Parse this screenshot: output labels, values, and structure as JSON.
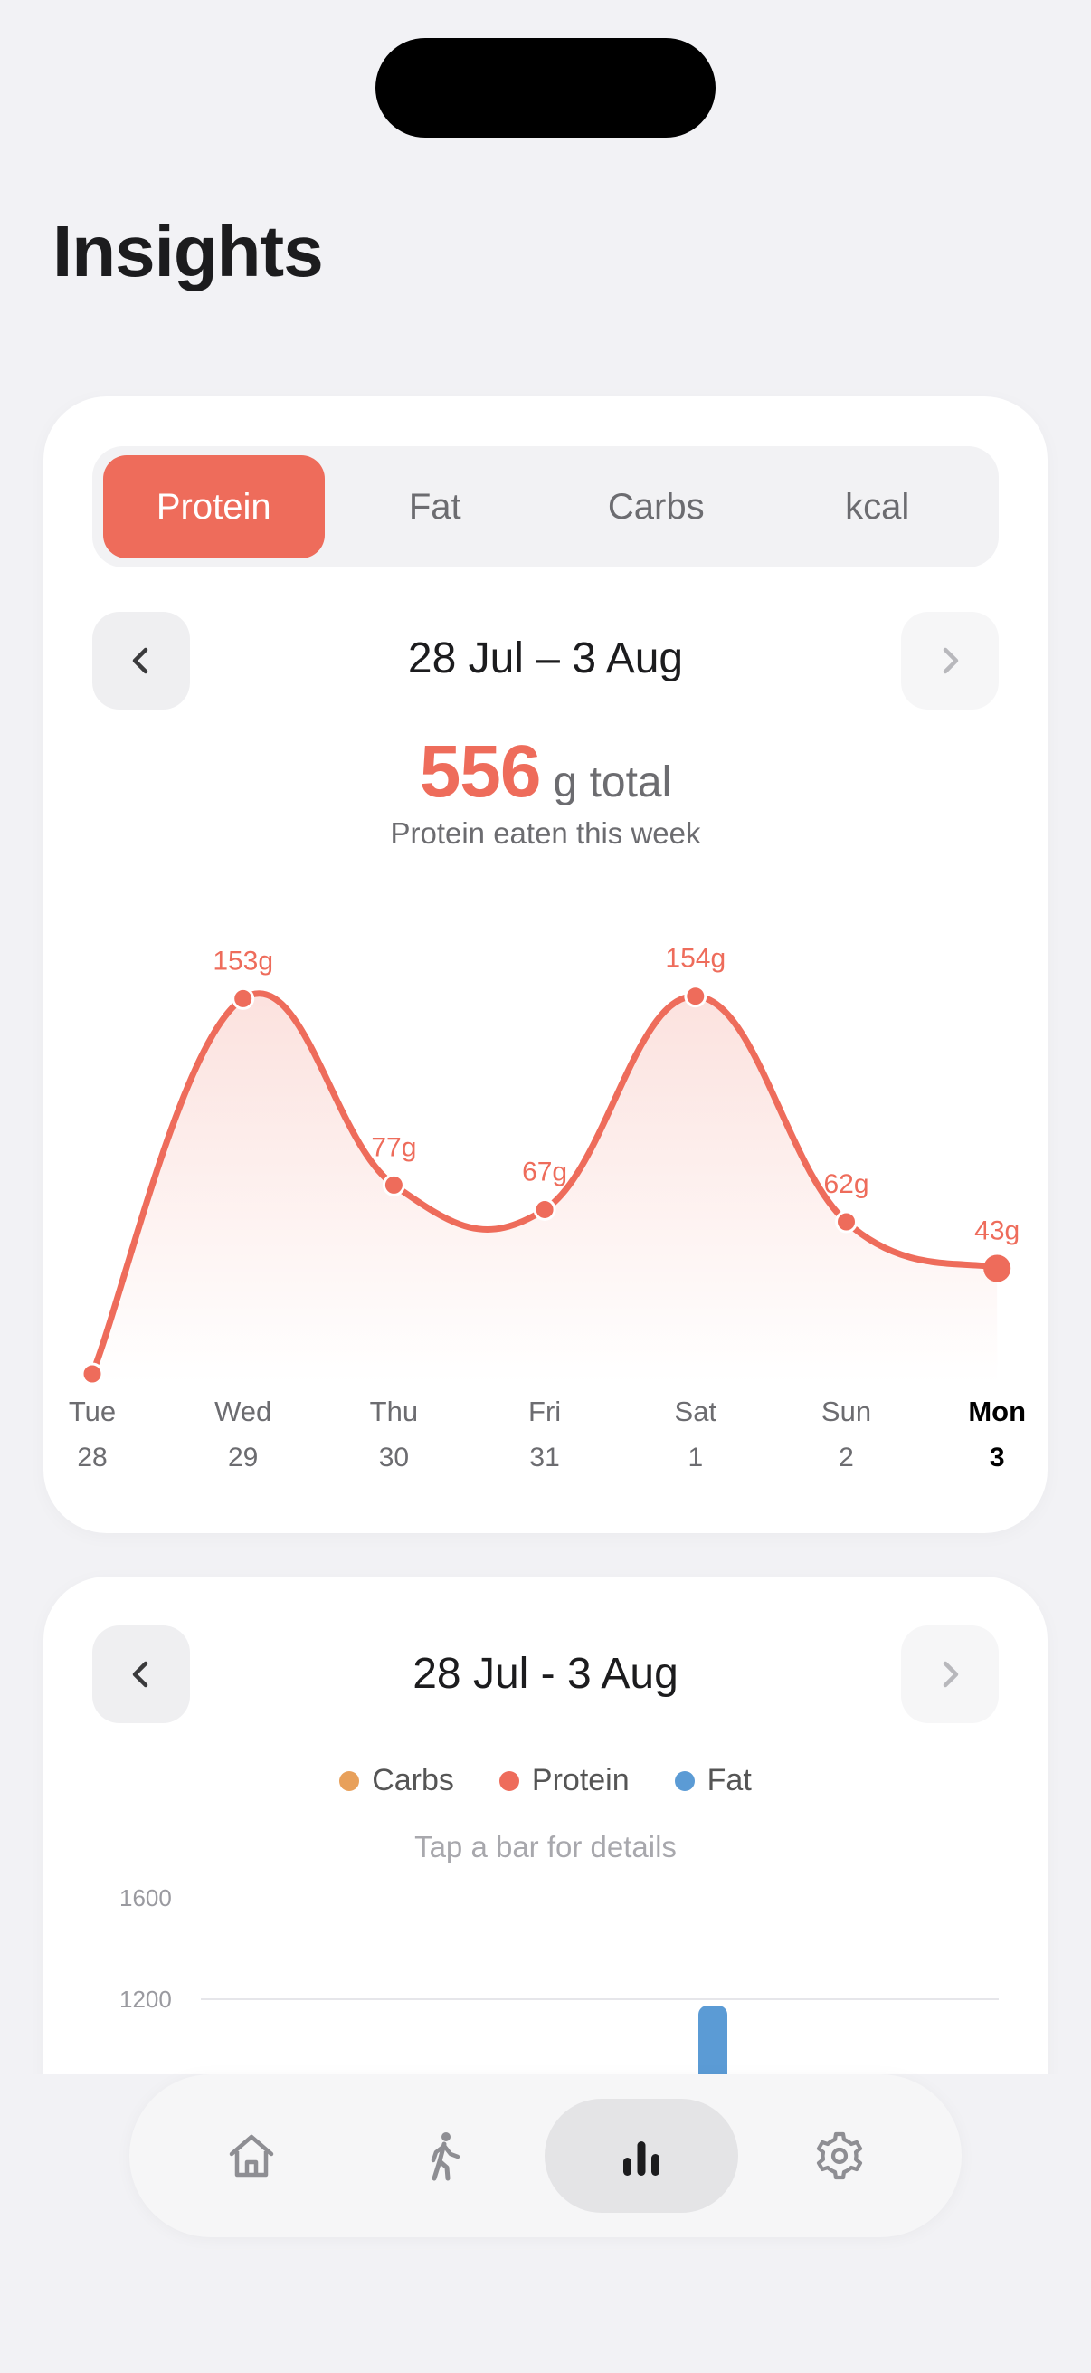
{
  "title": "Insights",
  "tabs": [
    {
      "label": "Protein",
      "active": true
    },
    {
      "label": "Fat",
      "active": false
    },
    {
      "label": "Carbs",
      "active": false
    },
    {
      "label": "kcal",
      "active": false
    }
  ],
  "card1": {
    "week_label": "28 Jul – 3 Aug",
    "total_value": "556",
    "total_unit": "g total",
    "subtitle": "Protein eaten this week"
  },
  "chart_data": {
    "type": "area",
    "categories": [
      "Tue",
      "Wed",
      "Thu",
      "Fri",
      "Sat",
      "Sun",
      "Mon"
    ],
    "dates": [
      "28",
      "29",
      "30",
      "31",
      "1",
      "2",
      "3"
    ],
    "values": [
      0,
      153,
      77,
      67,
      154,
      62,
      43
    ],
    "data_labels": [
      "",
      "153g",
      "77g",
      "67g",
      "154g",
      "62g",
      "43g"
    ],
    "highlight_index": 6,
    "color": "#ee6c5b",
    "unit": "g"
  },
  "card2": {
    "week_label": "28 Jul - 3 Aug",
    "legend": [
      {
        "label": "Carbs",
        "color": "#e8a05a"
      },
      {
        "label": "Protein",
        "color": "#ee6c5b"
      },
      {
        "label": "Fat",
        "color": "#5b9bd5"
      }
    ],
    "hint": "Tap a bar for details",
    "y_ticks": [
      "1600",
      "1200"
    ],
    "visible_bar": {
      "series": "Fat",
      "color": "#5b9bd5"
    }
  },
  "tabbar": [
    {
      "icon": "home-icon",
      "active": false
    },
    {
      "icon": "walking-person-icon",
      "active": false
    },
    {
      "icon": "bar-chart-icon",
      "active": true
    },
    {
      "icon": "gear-icon",
      "active": false
    }
  ]
}
